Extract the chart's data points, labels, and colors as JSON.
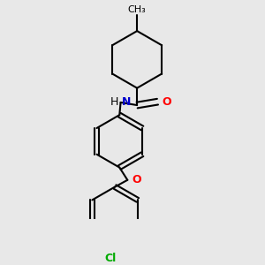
{
  "background_color": "#e8e8e8",
  "bond_color": "#000000",
  "bond_width": 1.5,
  "atom_colors": {
    "N": "#0000cc",
    "O_carbonyl": "#ff0000",
    "O_ether": "#ff0000",
    "Cl": "#00aa00",
    "C": "#000000"
  },
  "font_size_atoms": 9,
  "methyl_label": "CH₃",
  "n_label": "N",
  "h_label": "H",
  "o_label": "O",
  "cl_label": "Cl"
}
